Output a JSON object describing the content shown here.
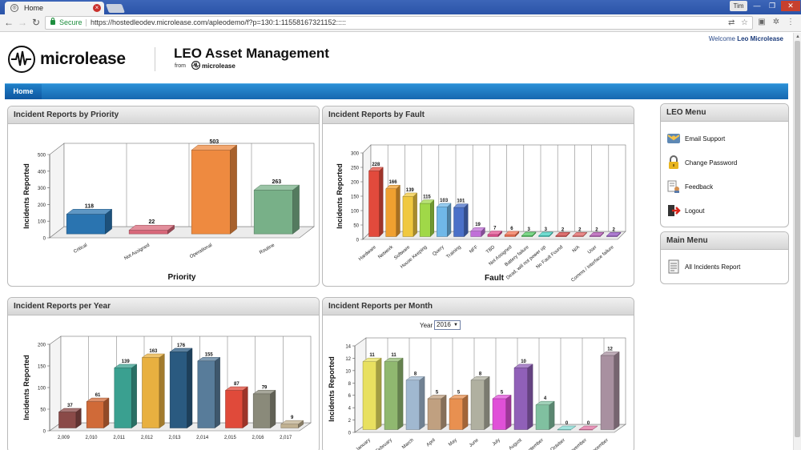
{
  "browser": {
    "tab_title": "Home",
    "tab_close": "×",
    "user_name": "Tim",
    "secure_label": "Secure",
    "url": "https://hostedleodev.microlease.com/apleodemo/f?p=130:1:11558167321152:::::"
  },
  "header": {
    "welcome_prefix": "Welcome",
    "welcome_user": "Leo Microlease",
    "logo_text": "microlease",
    "app_title": "LEO Asset Management",
    "from_label": "from",
    "from_brand": "microlease"
  },
  "nav": {
    "home_label": "Home"
  },
  "colors": {
    "nav_blue": "#1668b0",
    "panel_head": "#d6d6d6"
  },
  "panels": {
    "priority": {
      "title": "Incident Reports by Priority"
    },
    "fault": {
      "title": "Incident Reports by Fault"
    },
    "year": {
      "title": "Incident Reports per Year"
    },
    "month": {
      "title": "Incident Reports per Month",
      "year_label": "Year",
      "year_value": "2016"
    }
  },
  "leo_menu": {
    "title": "LEO Menu",
    "items": [
      {
        "label": "Email Support",
        "icon": "email-icon"
      },
      {
        "label": "Change Password",
        "icon": "padlock-icon"
      },
      {
        "label": "Feedback",
        "icon": "feedback-icon"
      },
      {
        "label": "Logout",
        "icon": "logout-icon"
      }
    ]
  },
  "main_menu": {
    "title": "Main Menu",
    "items": [
      {
        "label": "All Incidents Report",
        "icon": "report-icon"
      }
    ]
  },
  "chart_data": [
    {
      "id": "priority",
      "type": "bar",
      "ylabel": "Incidents Reported",
      "xlabel": "Priority",
      "ylim": [
        0,
        500
      ],
      "yticks": [
        0,
        100,
        200,
        300,
        400,
        500
      ],
      "categories": [
        "Critical",
        "Not Assigned",
        "Operational",
        "Routine"
      ],
      "values": [
        118,
        22,
        503,
        263
      ],
      "colors": [
        "#2a74b0",
        "#d8687a",
        "#ee8a40",
        "#78b088"
      ]
    },
    {
      "id": "fault",
      "type": "bar",
      "ylabel": "Incidents Reported",
      "xlabel": "Fault",
      "ylim": [
        0,
        300
      ],
      "yticks": [
        0,
        50,
        100,
        150,
        200,
        250,
        300
      ],
      "categories": [
        "Hardware",
        "Network",
        "Software",
        "House Keeping",
        "Query",
        "Training",
        "NFF",
        "TBD",
        "Not Assigned",
        "Battery failure",
        "Dead, will not power up",
        "No Fault Found",
        "N/A",
        "User",
        "Comms / Interface failure"
      ],
      "values": [
        228,
        166,
        139,
        115,
        103,
        101,
        19,
        7,
        6,
        3,
        3,
        2,
        2,
        2,
        2
      ],
      "colors": [
        "#e24a3c",
        "#f0a030",
        "#f0c840",
        "#a0d848",
        "#70b8e8",
        "#4a70c8",
        "#c070d8",
        "#e05090",
        "#f07050",
        "#50c860",
        "#40d0c0",
        "#d04040",
        "#e06060",
        "#b050b0",
        "#9050c0"
      ]
    },
    {
      "id": "year",
      "type": "bar",
      "ylabel": "Incidents Reported",
      "xlabel": "",
      "ylim": [
        0,
        200
      ],
      "yticks": [
        0,
        50,
        100,
        150,
        200
      ],
      "categories": [
        "2,009",
        "2,010",
        "2,011",
        "2,012",
        "2,013",
        "2,014",
        "2,015",
        "2,016",
        "2,017"
      ],
      "values": [
        37,
        61,
        139,
        163,
        176,
        155,
        87,
        79,
        9
      ],
      "colors": [
        "#8a4a48",
        "#d06a38",
        "#3aa090",
        "#e8b040",
        "#2a5a80",
        "#587c9a",
        "#e04a3a",
        "#8a8a7a",
        "#c0b090"
      ]
    },
    {
      "id": "month",
      "type": "bar",
      "ylabel": "Incidents Reported",
      "xlabel": "",
      "ylim": [
        0,
        14
      ],
      "yticks": [
        0,
        2,
        4,
        6,
        8,
        10,
        12,
        14
      ],
      "categories": [
        "January",
        "February",
        "March",
        "April",
        "May",
        "June",
        "July",
        "August",
        "September",
        "October",
        "November",
        "December"
      ],
      "values": [
        11,
        11,
        8,
        5,
        5,
        8,
        5,
        10,
        4,
        0,
        0,
        12
      ],
      "colors": [
        "#e8e060",
        "#90b870",
        "#a0b8d0",
        "#c0a080",
        "#e89050",
        "#b0b0a0",
        "#e050d8",
        "#9060b8",
        "#80c0a0",
        "#80d8d0",
        "#e070a0",
        "#a890a0"
      ]
    }
  ]
}
